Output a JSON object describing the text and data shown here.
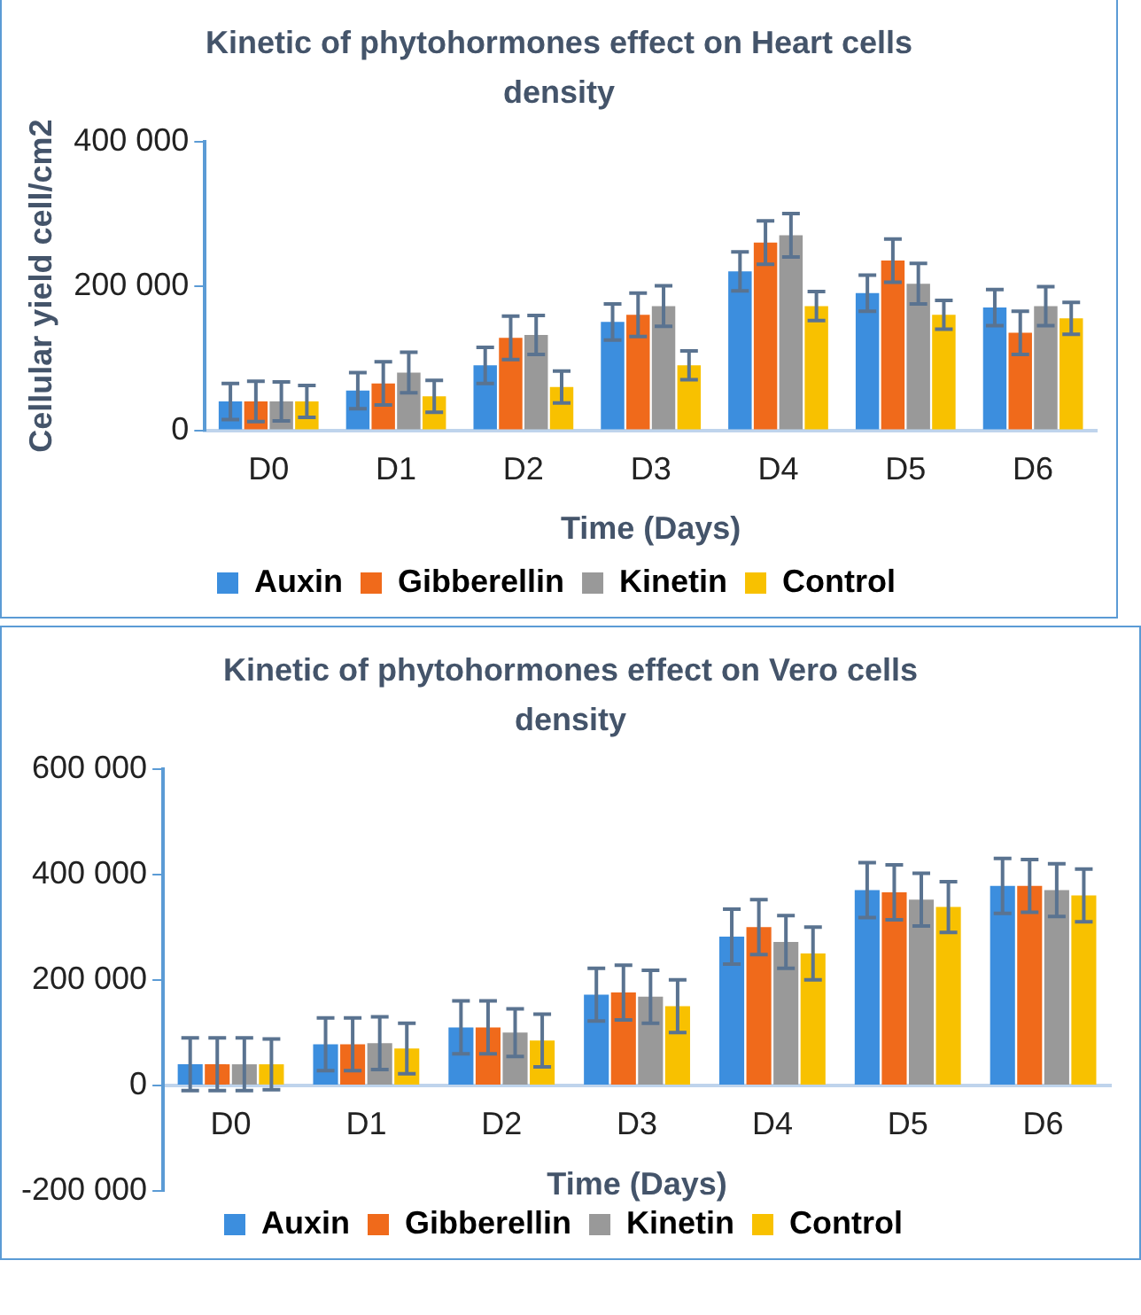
{
  "chart_data": [
    {
      "type": "bar",
      "title": "Kinetic of phytohormones effect on Heart cells density",
      "xlabel": "Time (Days)",
      "ylabel": "Cellular yield cell/cm2",
      "categories": [
        "D0",
        "D1",
        "D2",
        "D3",
        "D4",
        "D5",
        "D6"
      ],
      "series": [
        {
          "name": "Auxin",
          "color": "#3c8ede",
          "values": [
            40000,
            55000,
            90000,
            150000,
            220000,
            190000,
            170000
          ],
          "errors": [
            25000,
            25000,
            25000,
            25000,
            27000,
            25000,
            25000
          ]
        },
        {
          "name": "Gibberellin",
          "color": "#f06a1b",
          "values": [
            40000,
            65000,
            128000,
            160000,
            260000,
            235000,
            135000
          ],
          "errors": [
            28000,
            30000,
            30000,
            30000,
            30000,
            30000,
            30000
          ]
        },
        {
          "name": "Kinetin",
          "color": "#999999",
          "values": [
            40000,
            80000,
            132000,
            172000,
            270000,
            203000,
            172000
          ],
          "errors": [
            27000,
            28000,
            27000,
            28000,
            30000,
            28000,
            27000
          ]
        },
        {
          "name": "Control",
          "color": "#f8c100",
          "values": [
            40000,
            47000,
            60000,
            90000,
            172000,
            160000,
            155000
          ],
          "errors": [
            22000,
            22000,
            22000,
            20000,
            20000,
            20000,
            22000
          ]
        }
      ],
      "ylim": [
        0,
        400000
      ],
      "yticks": [
        {
          "value": 0,
          "label": "0"
        },
        {
          "value": 200000,
          "label": "200 000"
        },
        {
          "value": 400000,
          "label": "400 000"
        }
      ],
      "grid": false,
      "legend": "bottom"
    },
    {
      "type": "bar",
      "title": "Kinetic of phytohormones effect on Vero cells density",
      "xlabel": "Time (Days)",
      "categories": [
        "D0",
        "D1",
        "D2",
        "D3",
        "D4",
        "D5",
        "D6"
      ],
      "series": [
        {
          "name": "Auxin",
          "color": "#3c8ede",
          "values": [
            40000,
            78000,
            110000,
            172000,
            282000,
            370000,
            378000
          ],
          "errors": [
            50000,
            50000,
            50000,
            50000,
            52000,
            52000,
            52000
          ]
        },
        {
          "name": "Gibberellin",
          "color": "#f06a1b",
          "values": [
            40000,
            78000,
            110000,
            176000,
            300000,
            366000,
            378000
          ],
          "errors": [
            50000,
            50000,
            50000,
            52000,
            52000,
            52000,
            50000
          ]
        },
        {
          "name": "Kinetin",
          "color": "#999999",
          "values": [
            40000,
            80000,
            100000,
            168000,
            272000,
            352000,
            370000
          ],
          "errors": [
            50000,
            50000,
            45000,
            50000,
            50000,
            50000,
            50000
          ]
        },
        {
          "name": "Control",
          "color": "#f8c100",
          "values": [
            40000,
            70000,
            85000,
            150000,
            250000,
            338000,
            360000
          ],
          "errors": [
            48000,
            48000,
            50000,
            50000,
            50000,
            48000,
            50000
          ]
        }
      ],
      "ylim": [
        -200000,
        600000
      ],
      "yticks": [
        {
          "value": -200000,
          "label": "-200 000"
        },
        {
          "value": 0,
          "label": "0"
        },
        {
          "value": 200000,
          "label": "200 000"
        },
        {
          "value": 400000,
          "label": "400 000"
        },
        {
          "value": 600000,
          "label": "600 000"
        }
      ],
      "grid": false,
      "legend": "bottom"
    }
  ]
}
